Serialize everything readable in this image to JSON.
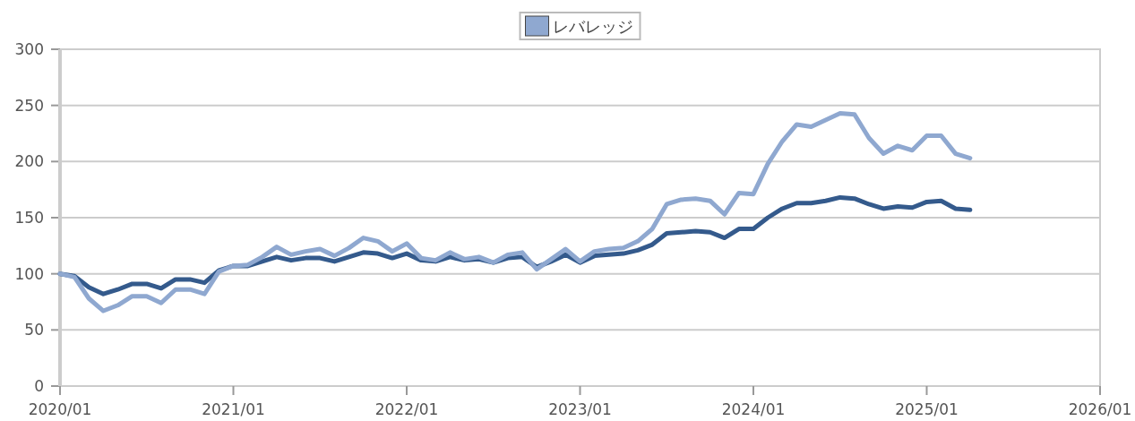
{
  "chart_data": {
    "type": "line",
    "x": [
      "2020-01",
      "2020-02",
      "2020-03",
      "2020-04",
      "2020-05",
      "2020-06",
      "2020-07",
      "2020-08",
      "2020-09",
      "2020-10",
      "2020-11",
      "2020-12",
      "2021-01",
      "2021-02",
      "2021-03",
      "2021-04",
      "2021-05",
      "2021-06",
      "2021-07",
      "2021-08",
      "2021-09",
      "2021-10",
      "2021-11",
      "2021-12",
      "2022-01",
      "2022-02",
      "2022-03",
      "2022-04",
      "2022-05",
      "2022-06",
      "2022-07",
      "2022-08",
      "2022-09",
      "2022-10",
      "2022-11",
      "2022-12",
      "2023-01",
      "2023-02",
      "2023-03",
      "2023-04",
      "2023-05",
      "2023-06",
      "2023-07",
      "2023-08",
      "2023-09",
      "2023-10",
      "2023-11",
      "2023-12",
      "2024-01",
      "2024-02",
      "2024-03",
      "2024-04",
      "2024-05",
      "2024-06",
      "2024-07",
      "2024-08",
      "2024-09",
      "2024-10",
      "2024-11",
      "2024-12",
      "2025-01",
      "2025-02",
      "2025-03",
      "2025-04"
    ],
    "series": [
      {
        "color": "#345a8c",
        "values": [
          100,
          98,
          88,
          82,
          86,
          91,
          91,
          87,
          95,
          95,
          92,
          103,
          107,
          107,
          111,
          115,
          112,
          114,
          114,
          111,
          115,
          119,
          118,
          114,
          118,
          112,
          111,
          115,
          112,
          113,
          110,
          114,
          115,
          106,
          111,
          117,
          110,
          116,
          117,
          118,
          121,
          126,
          136,
          137,
          138,
          137,
          132,
          140,
          140,
          150,
          158,
          163,
          163,
          165,
          168,
          167,
          162,
          158,
          160,
          159,
          164,
          165,
          158,
          157
        ]
      },
      {
        "name": "レバレッジ",
        "color": "#8fa8d0",
        "values": [
          100,
          97,
          78,
          67,
          72,
          80,
          80,
          74,
          86,
          86,
          82,
          102,
          107,
          108,
          115,
          124,
          117,
          120,
          122,
          116,
          123,
          132,
          129,
          120,
          127,
          114,
          112,
          119,
          113,
          115,
          110,
          117,
          119,
          104,
          113,
          122,
          111,
          120,
          122,
          123,
          129,
          140,
          162,
          166,
          167,
          165,
          153,
          172,
          171,
          198,
          218,
          233,
          231,
          237,
          243,
          242,
          221,
          207,
          214,
          210,
          223,
          223,
          207,
          203
        ]
      }
    ],
    "xlim": [
      "2020-01",
      "2026-01"
    ],
    "xticks": [
      {
        "value": "2020-01",
        "label": "2020/01"
      },
      {
        "value": "2021-01",
        "label": "2021/01"
      },
      {
        "value": "2022-01",
        "label": "2022/01"
      },
      {
        "value": "2023-01",
        "label": "2023/01"
      },
      {
        "value": "2024-01",
        "label": "2024/01"
      },
      {
        "value": "2025-01",
        "label": "2025/01"
      },
      {
        "value": "2026-01",
        "label": "2026/01"
      }
    ],
    "ylim": [
      0,
      300
    ],
    "yticks": [
      0,
      50,
      100,
      150,
      200,
      250,
      300
    ],
    "grid": "y",
    "legend": "top",
    "marker": "none",
    "line_style": "solid"
  }
}
